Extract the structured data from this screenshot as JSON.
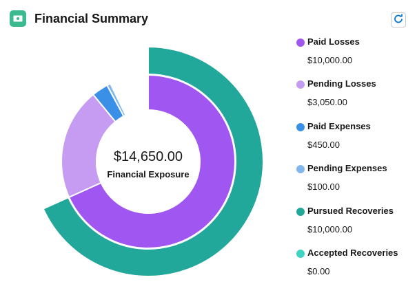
{
  "header": {
    "title": "Financial Summary",
    "icon": "money-icon",
    "refresh_icon": "refresh-icon"
  },
  "center": {
    "amount": "$14,650.00",
    "label": "Financial Exposure"
  },
  "chart_data": {
    "type": "pie",
    "rings": [
      {
        "name": "outer",
        "series": [
          {
            "name": "Pursued Recoveries",
            "value": 10000,
            "color": "#22a89b"
          },
          {
            "name": "Accepted Recoveries",
            "value": 0,
            "color": "#3fd3c2"
          }
        ]
      },
      {
        "name": "inner",
        "series": [
          {
            "name": "Paid Losses",
            "value": 10000,
            "color": "#a056f0"
          },
          {
            "name": "Pending Losses",
            "value": 3050,
            "color": "#c59cf2"
          },
          {
            "name": "Paid Expenses",
            "value": 450,
            "color": "#3a8fe6"
          },
          {
            "name": "Pending Expenses",
            "value": 100,
            "color": "#82b7ee"
          }
        ]
      }
    ],
    "center_total": 14650
  },
  "legend": [
    {
      "label": "Paid Losses",
      "value": "$10,000.00",
      "color": "#a056f0"
    },
    {
      "label": "Pending Losses",
      "value": "$3,050.00",
      "color": "#c59cf2"
    },
    {
      "label": "Paid Expenses",
      "value": "$450.00",
      "color": "#3a8fe6"
    },
    {
      "label": "Pending Expenses",
      "value": "$100.00",
      "color": "#82b7ee"
    },
    {
      "label": "Pursued Recoveries",
      "value": "$10,000.00",
      "color": "#22a89b"
    },
    {
      "label": "Accepted Recoveries",
      "value": "$0.00",
      "color": "#3fd3c2"
    }
  ]
}
